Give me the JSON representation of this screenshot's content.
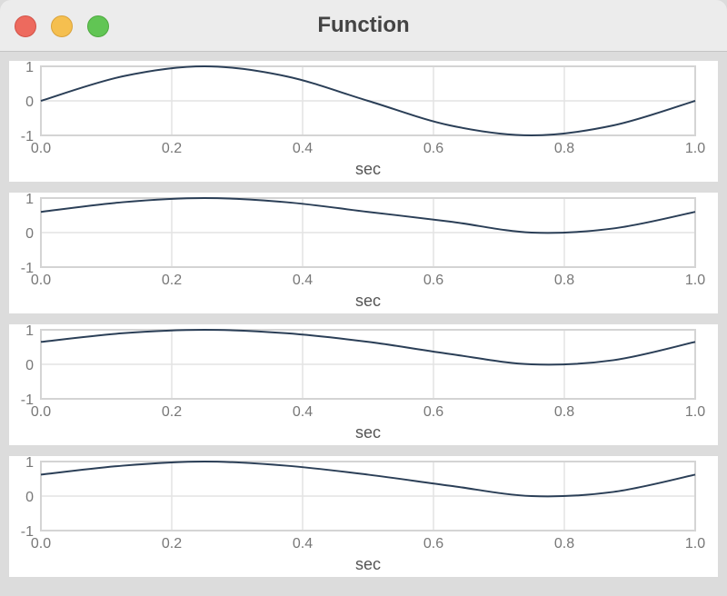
{
  "window": {
    "title": "Function"
  },
  "chart_data": [
    {
      "type": "line",
      "xlabel": "sec",
      "xlim": [
        0,
        1
      ],
      "ylim": [
        -1,
        1
      ],
      "x_ticks": [
        "0.0",
        "0.2",
        "0.4",
        "0.6",
        "0.8",
        "1.0"
      ],
      "y_ticks": [
        "1",
        "0",
        "-1"
      ],
      "grid": true,
      "color": "#2b3f57",
      "series": [
        {
          "x": [
            0,
            0.125,
            0.25,
            0.375,
            0.5,
            0.625,
            0.75,
            0.875,
            1.0
          ],
          "y": [
            0,
            0.71,
            1.0,
            0.71,
            0,
            -0.71,
            -1.0,
            -0.71,
            0
          ]
        }
      ]
    },
    {
      "type": "line",
      "xlabel": "sec",
      "xlim": [
        0,
        1
      ],
      "ylim": [
        -1,
        1
      ],
      "x_ticks": [
        "0.0",
        "0.2",
        "0.4",
        "0.6",
        "0.8",
        "1.0"
      ],
      "y_ticks": [
        "1",
        "0",
        "-1"
      ],
      "grid": true,
      "color": "#2b3f57",
      "series": [
        {
          "x": [
            0,
            0.125,
            0.25,
            0.375,
            0.5,
            0.625,
            0.75,
            0.875,
            1.0
          ],
          "y": [
            0.6,
            0.88,
            1.0,
            0.88,
            0.6,
            0.32,
            0.0,
            0.12,
            0.6
          ]
        }
      ]
    },
    {
      "type": "line",
      "xlabel": "sec",
      "xlim": [
        0,
        1
      ],
      "ylim": [
        -1,
        1
      ],
      "x_ticks": [
        "0.0",
        "0.2",
        "0.4",
        "0.6",
        "0.8",
        "1.0"
      ],
      "y_ticks": [
        "1",
        "0",
        "-1"
      ],
      "grid": true,
      "color": "#2b3f57",
      "series": [
        {
          "x": [
            0,
            0.125,
            0.25,
            0.375,
            0.5,
            0.625,
            0.75,
            0.875,
            1.0
          ],
          "y": [
            0.65,
            0.9,
            1.0,
            0.9,
            0.65,
            0.3,
            0.0,
            0.12,
            0.65
          ]
        }
      ]
    },
    {
      "type": "line",
      "xlabel": "sec",
      "xlim": [
        0,
        1
      ],
      "ylim": [
        -1,
        1
      ],
      "x_ticks": [
        "0.0",
        "0.2",
        "0.4",
        "0.6",
        "0.8",
        "1.0"
      ],
      "y_ticks": [
        "1",
        "0",
        "-1"
      ],
      "grid": true,
      "color": "#2b3f57",
      "series": [
        {
          "x": [
            0,
            0.125,
            0.25,
            0.375,
            0.5,
            0.625,
            0.75,
            0.875,
            1.0
          ],
          "y": [
            0.62,
            0.88,
            1.0,
            0.88,
            0.62,
            0.3,
            0.0,
            0.12,
            0.62
          ]
        }
      ]
    }
  ]
}
